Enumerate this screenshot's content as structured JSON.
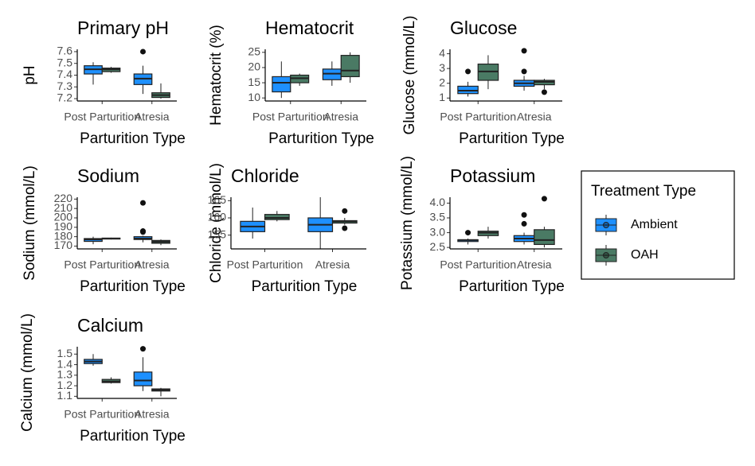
{
  "chart_data": [
    {
      "type": "box",
      "title": "Primary pH",
      "y_label": "pH",
      "x_label": "Parturition Type",
      "categories": [
        "Post Parturition",
        "Atresia"
      ],
      "ylim": [
        7.18,
        7.62
      ],
      "yticks": [
        7.2,
        7.3,
        7.4,
        7.5,
        7.6
      ],
      "series": [
        {
          "name": "Ambient",
          "color": "#1e90ff",
          "boxes": [
            {
              "min": 7.32,
              "q1": 7.41,
              "median": 7.45,
              "q3": 7.48,
              "max": 7.51
            },
            {
              "min": 7.24,
              "q1": 7.32,
              "median": 7.37,
              "q3": 7.41,
              "max": 7.48,
              "outliers": [
                7.6
              ]
            }
          ]
        },
        {
          "name": "OAH",
          "color": "#4a7a64",
          "boxes": [
            {
              "min": 7.42,
              "q1": 7.43,
              "median": 7.45,
              "q3": 7.46,
              "max": 7.47
            },
            {
              "min": 7.2,
              "q1": 7.21,
              "median": 7.23,
              "q3": 7.25,
              "max": 7.33
            }
          ]
        }
      ]
    },
    {
      "type": "box",
      "title": "Hematocrit",
      "y_label": "Hematocrit (%)",
      "x_label": "Parturition Type",
      "categories": [
        "Post Parturition",
        "Atresia"
      ],
      "ylim": [
        9,
        26
      ],
      "yticks": [
        10,
        15,
        20,
        25
      ],
      "series": [
        {
          "name": "Ambient",
          "color": "#1e90ff",
          "boxes": [
            {
              "min": 10,
              "q1": 12,
              "median": 15,
              "q3": 17,
              "max": 22
            },
            {
              "min": 14,
              "q1": 16,
              "median": 18,
              "q3": 19.5,
              "max": 22
            }
          ]
        },
        {
          "name": "OAH",
          "color": "#4a7a64",
          "boxes": [
            {
              "min": 14,
              "q1": 15,
              "median": 16.5,
              "q3": 17.5,
              "max": 18
            },
            {
              "min": 15,
              "q1": 17,
              "median": 19,
              "q3": 24,
              "max": 25
            }
          ]
        }
      ]
    },
    {
      "type": "box",
      "title": "Glucose",
      "y_label": "Glucose (mmol/L)",
      "x_label": "Parturition Type",
      "categories": [
        "Post Parturition",
        "Atresia"
      ],
      "ylim": [
        0.8,
        4.3
      ],
      "yticks": [
        1,
        2,
        3,
        4
      ],
      "series": [
        {
          "name": "Ambient",
          "color": "#1e90ff",
          "boxes": [
            {
              "min": 1.1,
              "q1": 1.3,
              "median": 1.5,
              "q3": 1.8,
              "max": 2.1,
              "outliers": [
                2.8
              ]
            },
            {
              "min": 1.5,
              "q1": 1.8,
              "median": 2.0,
              "q3": 2.2,
              "max": 2.5,
              "outliers": [
                4.2,
                2.8
              ]
            }
          ]
        },
        {
          "name": "OAH",
          "color": "#4a7a64",
          "boxes": [
            {
              "min": 1.6,
              "q1": 2.2,
              "median": 2.8,
              "q3": 3.3,
              "max": 3.9
            },
            {
              "min": 1.6,
              "q1": 1.9,
              "median": 2.1,
              "q3": 2.2,
              "max": 2.3,
              "outliers": [
                1.4
              ]
            }
          ]
        }
      ]
    },
    {
      "type": "box",
      "title": "Sodium",
      "y_label": "Sodium (mmol/L)",
      "x_label": "Parturition Type",
      "categories": [
        "Post Parturition",
        "Atresia"
      ],
      "ylim": [
        167,
        222
      ],
      "yticks": [
        170,
        180,
        190,
        200,
        210,
        220
      ],
      "series": [
        {
          "name": "Ambient",
          "color": "#1e90ff",
          "boxes": [
            {
              "min": 172,
              "q1": 175,
              "median": 177,
              "q3": 178,
              "max": 180
            },
            {
              "min": 174,
              "q1": 177,
              "median": 178,
              "q3": 180,
              "max": 181,
              "outliers": [
                186,
                185,
                216
              ]
            }
          ]
        },
        {
          "name": "OAH",
          "color": "#4a7a64",
          "boxes": [
            {
              "min": 177,
              "q1": 177.5,
              "median": 178,
              "q3": 178.5,
              "max": 179
            },
            {
              "min": 171,
              "q1": 173,
              "median": 174.5,
              "q3": 176,
              "max": 177
            }
          ]
        }
      ]
    },
    {
      "type": "box",
      "title": "Chloride",
      "y_label": "Chloride (mmol/L)",
      "x_label": "Parturition Type",
      "categories": [
        "Post Parturition",
        "Atresia"
      ],
      "ylim": [
        151,
        166
      ],
      "yticks": [
        155,
        160,
        165
      ],
      "series": [
        {
          "name": "Ambient",
          "color": "#1e90ff",
          "boxes": [
            {
              "min": 154,
              "q1": 156,
              "median": 157.5,
              "q3": 159,
              "max": 163
            },
            {
              "min": 151,
              "q1": 156,
              "median": 158,
              "q3": 160,
              "max": 166
            }
          ]
        },
        {
          "name": "OAH",
          "color": "#4a7a64",
          "boxes": [
            {
              "min": 159,
              "q1": 159.5,
              "median": 160,
              "q3": 161,
              "max": 162
            },
            {
              "min": 158,
              "q1": 158.5,
              "median": 159,
              "q3": 159.2,
              "max": 160,
              "outliers": [
                162,
                157
              ]
            }
          ]
        }
      ]
    },
    {
      "type": "box",
      "title": "Potassium",
      "y_label": "Potassium (mmol/L)",
      "x_label": "Parturition Type",
      "categories": [
        "Post Parturition",
        "Atresia"
      ],
      "ylim": [
        2.45,
        4.2
      ],
      "yticks": [
        2.5,
        {
          "value": 3,
          "label": "3.0"
        },
        3.5,
        {
          "value": 4,
          "label": "4.0"
        }
      ],
      "series": [
        {
          "name": "Ambient",
          "color": "#1e90ff",
          "boxes": [
            {
              "min": 2.6,
              "q1": 2.7,
              "median": 2.75,
              "q3": 2.76,
              "max": 2.8,
              "outliers": [
                3.0
              ]
            },
            {
              "min": 2.6,
              "q1": 2.7,
              "median": 2.8,
              "q3": 2.9,
              "max": 3.0,
              "outliers": [
                3.6,
                3.3
              ]
            }
          ]
        },
        {
          "name": "OAH",
          "color": "#4a7a64",
          "boxes": [
            {
              "min": 2.8,
              "q1": 2.9,
              "median": 3.0,
              "q3": 3.05,
              "max": 3.2
            },
            {
              "min": 2.5,
              "q1": 2.6,
              "median": 2.75,
              "q3": 3.1,
              "max": 3.2,
              "outliers": [
                4.15
              ]
            }
          ]
        }
      ]
    },
    {
      "type": "box",
      "title": "Calcium",
      "y_label": "Calcium (mmol/L)",
      "x_label": "Parturition Type",
      "categories": [
        "Post Parturition",
        "Atresia"
      ],
      "ylim": [
        1.08,
        1.57
      ],
      "yticks": [
        1.1,
        1.2,
        1.3,
        1.4,
        1.5
      ],
      "series": [
        {
          "name": "Ambient",
          "color": "#1e90ff",
          "boxes": [
            {
              "min": 1.39,
              "q1": 1.41,
              "median": 1.43,
              "q3": 1.45,
              "max": 1.5
            },
            {
              "min": 1.15,
              "q1": 1.2,
              "median": 1.25,
              "q3": 1.33,
              "max": 1.47,
              "outliers": [
                1.55
              ]
            }
          ]
        },
        {
          "name": "OAH",
          "color": "#4a7a64",
          "boxes": [
            {
              "min": 1.22,
              "q1": 1.23,
              "median": 1.24,
              "q3": 1.26,
              "max": 1.28
            },
            {
              "min": 1.1,
              "q1": 1.15,
              "median": 1.16,
              "q3": 1.17,
              "max": 1.18
            }
          ]
        }
      ]
    }
  ],
  "legend": {
    "title": "Treatment Type",
    "position": "right"
  }
}
